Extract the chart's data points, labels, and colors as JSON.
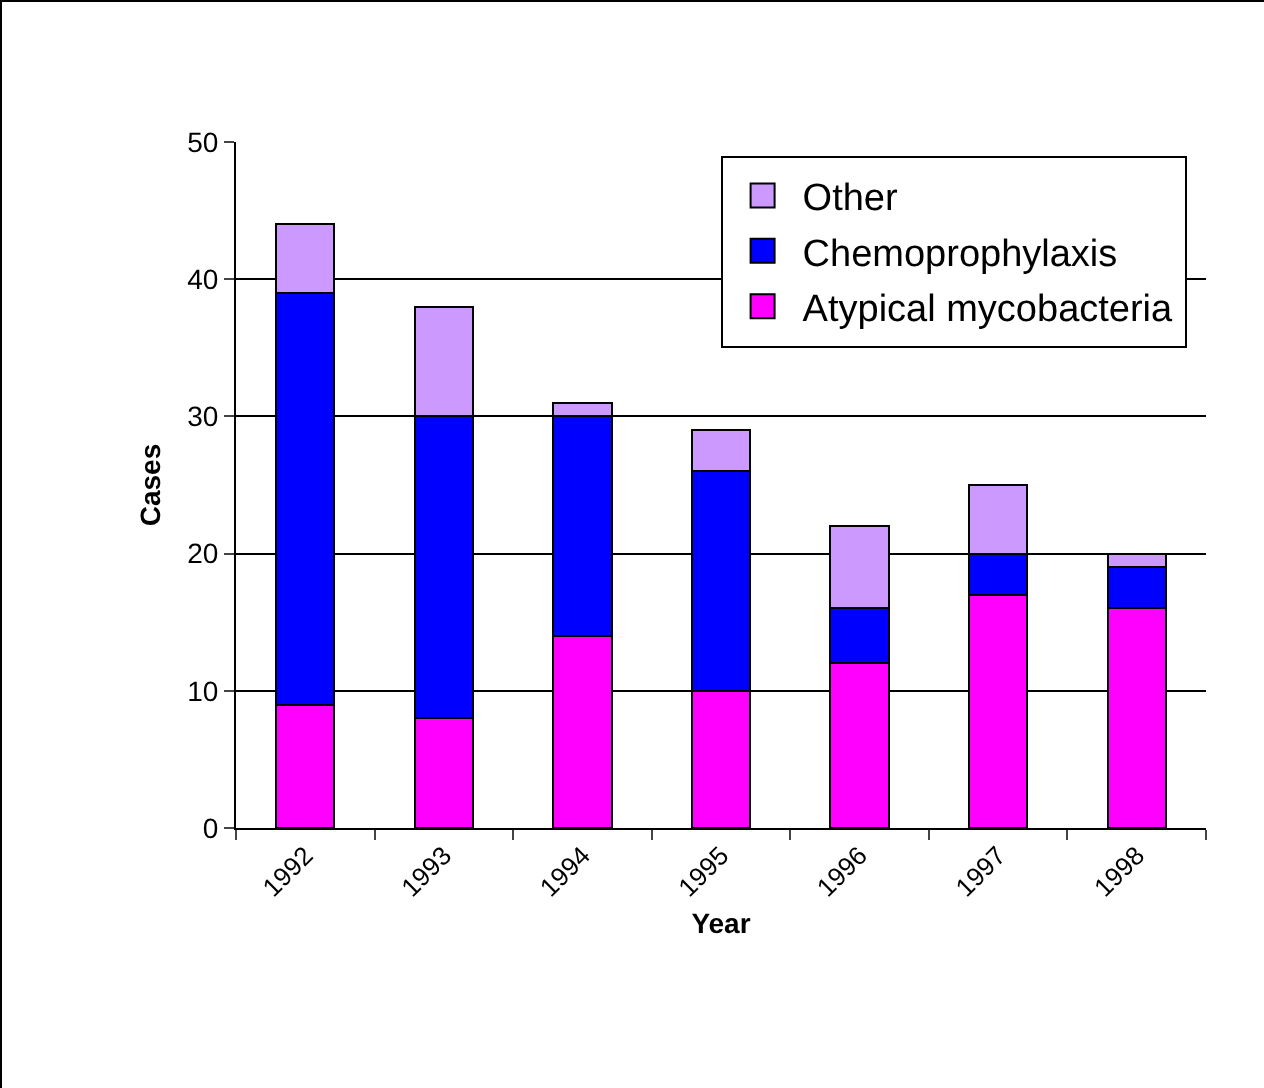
{
  "chart_data": {
    "type": "bar",
    "stacked": true,
    "xlabel": "Year",
    "ylabel": "Cases",
    "categories": [
      "1992",
      "1993",
      "1994",
      "1995",
      "1996",
      "1997",
      "1998"
    ],
    "series": [
      {
        "name": "Atypical mycobacteria",
        "color": "#ff00ff",
        "values": [
          9,
          8,
          14,
          10,
          12,
          17,
          16
        ]
      },
      {
        "name": "Chemoprophylaxis",
        "color": "#0000ff",
        "values": [
          30,
          22,
          16,
          16,
          4,
          3,
          3
        ]
      },
      {
        "name": "Other",
        "color": "#cc99ff",
        "values": [
          5,
          8,
          1,
          3,
          6,
          5,
          1
        ]
      }
    ],
    "ylim": [
      0,
      50
    ],
    "yticks": [
      0,
      10,
      20,
      30,
      40,
      50
    ],
    "grid": "y",
    "legend": "top right"
  }
}
